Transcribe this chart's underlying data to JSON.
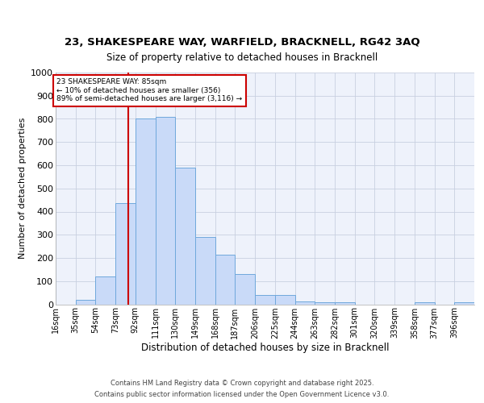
{
  "title_line1": "23, SHAKESPEARE WAY, WARFIELD, BRACKNELL, RG42 3AQ",
  "title_line2": "Size of property relative to detached houses in Bracknell",
  "xlabel": "Distribution of detached houses by size in Bracknell",
  "ylabel": "Number of detached properties",
  "bar_edges": [
    16,
    35,
    54,
    73,
    92,
    111,
    130,
    149,
    168,
    187,
    206,
    225,
    244,
    263,
    282,
    301,
    320,
    339,
    358,
    377,
    396
  ],
  "bar_heights": [
    0,
    20,
    120,
    435,
    800,
    810,
    590,
    290,
    215,
    130,
    40,
    40,
    12,
    8,
    8,
    0,
    0,
    0,
    10,
    0,
    8
  ],
  "bar_color": "#c9daf8",
  "bar_edge_color": "#6fa8dc",
  "red_line_x": 85,
  "red_line_color": "#cc0000",
  "ylim": [
    0,
    1000
  ],
  "yticks": [
    0,
    100,
    200,
    300,
    400,
    500,
    600,
    700,
    800,
    900,
    1000
  ],
  "annotation_text": "23 SHAKESPEARE WAY: 85sqm\n← 10% of detached houses are smaller (356)\n89% of semi-detached houses are larger (3,116) →",
  "annotation_box_color": "#ffffff",
  "annotation_box_edge_color": "#cc0000",
  "background_color": "#ffffff",
  "axes_bg_color": "#eef2fb",
  "grid_color": "#c8d0e0",
  "footer_line1": "Contains HM Land Registry data © Crown copyright and database right 2025.",
  "footer_line2": "Contains public sector information licensed under the Open Government Licence v3.0.",
  "tick_labels": [
    "16sqm",
    "35sqm",
    "54sqm",
    "73sqm",
    "92sqm",
    "111sqm",
    "130sqm",
    "149sqm",
    "168sqm",
    "187sqm",
    "206sqm",
    "225sqm",
    "244sqm",
    "263sqm",
    "282sqm",
    "301sqm",
    "320sqm",
    "339sqm",
    "358sqm",
    "377sqm",
    "396sqm"
  ]
}
